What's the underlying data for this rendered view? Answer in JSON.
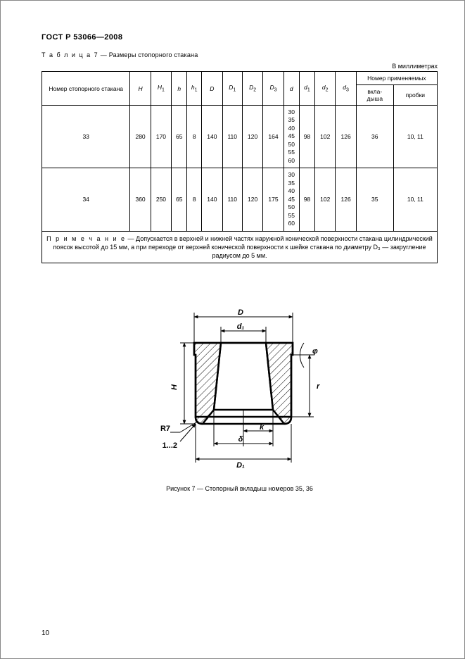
{
  "header": {
    "doc_title": "ГОСТ Р 53066—2008"
  },
  "table": {
    "caption_prefix": "Т а б л и ц а  7",
    "caption_rest": " — Размеры стопорного стакана",
    "units": "В миллиметрах",
    "columns": {
      "c0": "Номер стопорного стакана",
      "c1": "H",
      "c2": "H",
      "c2_sub": "1",
      "c3": "h",
      "c4": "h",
      "c4_sub": "1",
      "c5": "D",
      "c6": "D",
      "c6_sub": "1",
      "c7": "D",
      "c7_sub": "2",
      "c8": "D",
      "c8_sub": "3",
      "c9": "d",
      "c10": "d",
      "c10_sub": "1",
      "c11": "d",
      "c11_sub": "2",
      "c12": "d",
      "c12_sub": "3",
      "grp": "Номер применяемых",
      "sub_a": "вкла-\nдыша",
      "sub_b": "пробки"
    },
    "rows": [
      {
        "c0": "33",
        "c1": "280",
        "c2": "170",
        "c3": "65",
        "c4": "8",
        "c5": "140",
        "c6": "110",
        "c7": "120",
        "c8": "164",
        "c9_list": "30 35 40 45 50 55 60",
        "c10": "98",
        "c11": "102",
        "c12": "126",
        "sa": "36",
        "sb": "10, 11"
      },
      {
        "c0": "34",
        "c1": "360",
        "c2": "250",
        "c3": "65",
        "c4": "8",
        "c5": "140",
        "c6": "110",
        "c7": "120",
        "c8": "175",
        "c9_list": "30 35 40 45 50 55 60",
        "c10": "98",
        "c11": "102",
        "c12": "126",
        "sa": "35",
        "sb": "10, 11"
      }
    ],
    "note_label": "П р и м е ч а н и е",
    "note_text": " — Допускается в верхней и нижней частях наружной конической поверхности стакана цилиндрический поясок высотой до 15 мм, а при переходе от верхней конической поверхности к шейке стакана по диаметру D₃ — закругление радиусом до 5 мм."
  },
  "figure": {
    "caption": "Рисунок 7 — Стопорный вкладыш номеров 35, 36",
    "labels": {
      "D": "D",
      "d1": "d₁",
      "H": "H",
      "r": "r",
      "phi": "φ",
      "R7": "R7",
      "one_two": "1...2",
      "delta": "δ",
      "D1": "D₁",
      "k": "k"
    },
    "style": {
      "stroke": "#000000",
      "stroke_width": 1.5,
      "hatch_stroke": "#000000",
      "hatch_width": 1,
      "font_size": 11,
      "font_family": "Arial"
    }
  },
  "page_number": "10"
}
